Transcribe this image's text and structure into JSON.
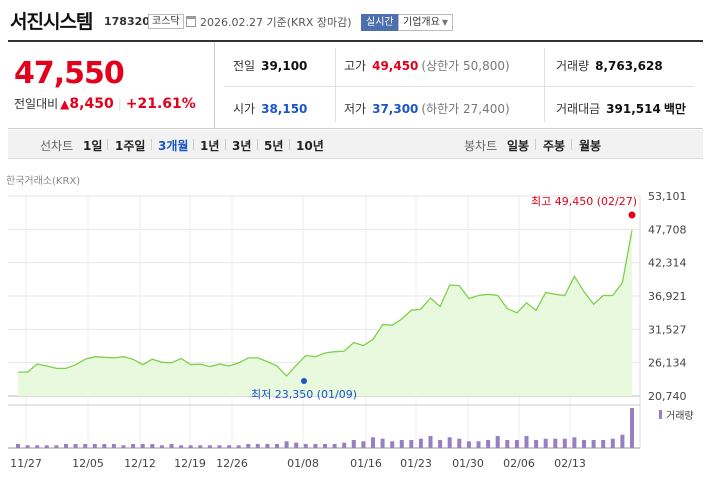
{
  "header": {
    "name": "서진시스템",
    "code": "178320",
    "market": "코스닥",
    "date": "2026.02.27 기준(KRX 장마감)",
    "realtime": "실시간",
    "company_overview": "기업개요"
  },
  "price": {
    "current": "47,550",
    "change_label": "전일대비",
    "change_symbol": "▲",
    "change": "8,450",
    "change_pct": "+21.61%",
    "prev_label": "전일",
    "prev": "39,100",
    "open_label": "시가",
    "open": "38,150",
    "high_label": "고가",
    "high": "49,450",
    "upper_limit": "(상한가 50,800)",
    "low_label": "저가",
    "low": "37,300",
    "lower_limit": "(하한가 27,400)",
    "volume_label": "거래량",
    "volume": "8,763,628",
    "amount_label": "거래대금",
    "amount": "391,514",
    "amount_unit": "백만"
  },
  "toolbar": {
    "line_label": "선차트",
    "line_periods": [
      "1일",
      "1주일",
      "3개월",
      "1년",
      "3년",
      "5년",
      "10년"
    ],
    "active_period": "3개월",
    "candle_label": "봉차트",
    "candle_periods": [
      "일봉",
      "주봉",
      "월봉"
    ]
  },
  "chart_source": "한국거래소(KRX)",
  "chart_data": {
    "type": "area",
    "y_ticks": [
      "53,101",
      "47,708",
      "42,314",
      "36,921",
      "31,527",
      "26,134",
      "20,740"
    ],
    "ylim": [
      20740,
      53101
    ],
    "x_labels": [
      "11/27",
      "12/05",
      "12/12",
      "12/19",
      "12/26",
      "01/08",
      "01/16",
      "01/23",
      "01/30",
      "02/06",
      "02/13"
    ],
    "max_label": "최고 49,450 (02/27)",
    "min_label": "최저 23,350 (01/09)",
    "volume_legend": "거래량",
    "colors": {
      "line": "#7ed04b",
      "fill": "#e8f9dd",
      "max": "#e3001b",
      "min": "#1a56c8",
      "volume": "#9a7ec2"
    },
    "values": [
      24600,
      24600,
      25900,
      25600,
      25200,
      25200,
      25800,
      26700,
      27100,
      27000,
      26900,
      27100,
      26700,
      25800,
      26700,
      26200,
      26100,
      26800,
      25800,
      25900,
      25500,
      25900,
      25600,
      26100,
      26900,
      26900,
      26300,
      25600,
      24000,
      25700,
      27300,
      27100,
      27700,
      27900,
      28000,
      29400,
      28900,
      29900,
      32300,
      32200,
      33200,
      34600,
      34800,
      36600,
      35200,
      38700,
      38600,
      36500,
      37000,
      37200,
      37000,
      34900,
      34200,
      35800,
      34600,
      37500,
      37200,
      37000,
      40100,
      37600,
      35600,
      37000,
      37000,
      39100,
      47550
    ],
    "volumes": [
      3,
      2,
      2,
      2,
      2,
      3,
      3,
      3,
      3,
      3,
      3,
      2,
      3,
      3,
      3,
      2,
      3,
      2,
      2,
      2,
      2,
      2,
      2,
      2,
      3,
      3,
      3,
      3,
      5,
      4,
      3,
      3,
      3,
      3,
      4,
      6,
      5,
      8,
      7,
      5,
      6,
      6,
      7,
      9,
      6,
      8,
      7,
      5,
      5,
      6,
      9,
      6,
      6,
      9,
      6,
      7,
      7,
      7,
      8,
      6,
      6,
      6,
      7,
      10,
      30
    ]
  }
}
